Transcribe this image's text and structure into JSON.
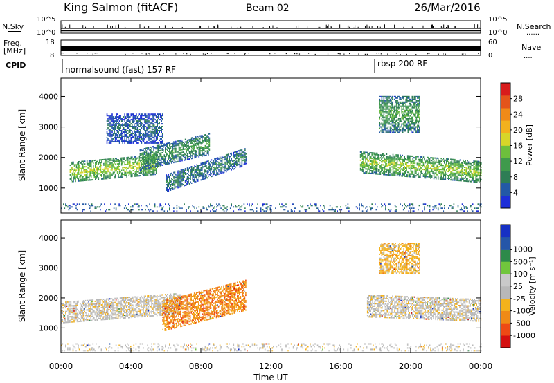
{
  "header": {
    "station": "King Salmon (fitACF)",
    "beam": "Beam 02",
    "date": "26/Mar/2016"
  },
  "side_labels": {
    "nsky": "N.Sky",
    "nsearch": "N.Search",
    "freq_line1": "Freq.",
    "freq_line2": "[MHz]",
    "nave": "Nave",
    "cpid": "CPID",
    "dotted": "......",
    "dotted_short": "...."
  },
  "noise_axis": {
    "top_label": "10^5",
    "bottom_label": "10^0"
  },
  "freq_axis": {
    "left_ticks": [
      "18",
      "8"
    ],
    "right_ticks": [
      "60",
      "0"
    ]
  },
  "cpid_segments": [
    {
      "label": "normalsound (fast) 157 RF",
      "start_hour": 0
    },
    {
      "label": "rbsp 200 RF",
      "start_hour": 18
    }
  ],
  "colors": {
    "power": [
      "#1e2fd8",
      "#2359a6",
      "#2e7d55",
      "#3f9a4c",
      "#6dbf3c",
      "#d7d629",
      "#f3b11d",
      "#f08a18",
      "#e4541a",
      "#d81b1b"
    ],
    "velocity": [
      "#d41010",
      "#ee4a15",
      "#f08a16",
      "#f4b21c",
      "#b8b8b8",
      "#c9c9c9",
      "#71c63c",
      "#2d8a4a",
      "#2556a8",
      "#1630c4"
    ]
  },
  "chart_data": [
    {
      "type": "heatmap",
      "name": "power",
      "ylabel": "Slant Range [km]",
      "y_ticks": [
        1000,
        2000,
        3000,
        4000
      ],
      "ylim": [
        180,
        4600
      ],
      "xlim": [
        0,
        24
      ],
      "colorbar_label": "Power [dB]",
      "colorbar_ticks": [
        "4",
        "8",
        "12",
        "16",
        "20",
        "24",
        "28"
      ],
      "colorbar_range": [
        0,
        30
      ],
      "bands": [
        {
          "t": [
            0.5,
            5.5
          ],
          "r": [
            1180,
            1820
          ],
          "slope": 250,
          "val": 14
        },
        {
          "t": [
            4.5,
            8.5
          ],
          "r": [
            1560,
            2260
          ],
          "slope": 520,
          "val": 9
        },
        {
          "t": [
            6.0,
            10.6
          ],
          "r": [
            860,
            1420
          ],
          "slope": 880,
          "val": 7
        },
        {
          "t": [
            2.6,
            5.8
          ],
          "r": [
            2450,
            3400
          ],
          "slope": 0,
          "val": 5
        },
        {
          "t": [
            17.1,
            24.0
          ],
          "r": [
            1480,
            2180
          ],
          "slope": -320,
          "val": 13
        },
        {
          "t": [
            18.2,
            20.5
          ],
          "r": [
            2800,
            4000
          ],
          "slope": 0,
          "val": 10
        },
        {
          "t": [
            0.0,
            24.0
          ],
          "r": [
            220,
            480
          ],
          "slope": 0,
          "val": 6
        }
      ]
    },
    {
      "type": "heatmap",
      "name": "velocity",
      "ylabel": "Slant Range [km]",
      "xlabel": "Time UT",
      "y_ticks": [
        1000,
        2000,
        3000,
        4000
      ],
      "ylim": [
        180,
        4600
      ],
      "xlim": [
        0,
        24
      ],
      "x_ticks": [
        "00:00",
        "04:00",
        "08:00",
        "12:00",
        "16:00",
        "20:00",
        "00:00"
      ],
      "colorbar_label": "Velocity [m s⁻¹]",
      "colorbar_ticks": [
        "-1000",
        "-500",
        "-100",
        "-25",
        "25",
        "100",
        "500",
        "1000"
      ],
      "bands": [
        {
          "t": [
            0.0,
            6.8
          ],
          "r": [
            1150,
            1850
          ],
          "slope": 300,
          "val": 0
        },
        {
          "t": [
            5.8,
            10.6
          ],
          "r": [
            880,
            1900
          ],
          "slope": 700,
          "val": -2
        },
        {
          "t": [
            17.5,
            24.0
          ],
          "r": [
            1350,
            2100
          ],
          "slope": -150,
          "val": 0
        },
        {
          "t": [
            18.2,
            20.5
          ],
          "r": [
            2800,
            3800
          ],
          "slope": 0,
          "val": -1
        },
        {
          "t": [
            0.0,
            24.0
          ],
          "r": [
            220,
            480
          ],
          "slope": 0,
          "val": 0
        }
      ]
    }
  ]
}
